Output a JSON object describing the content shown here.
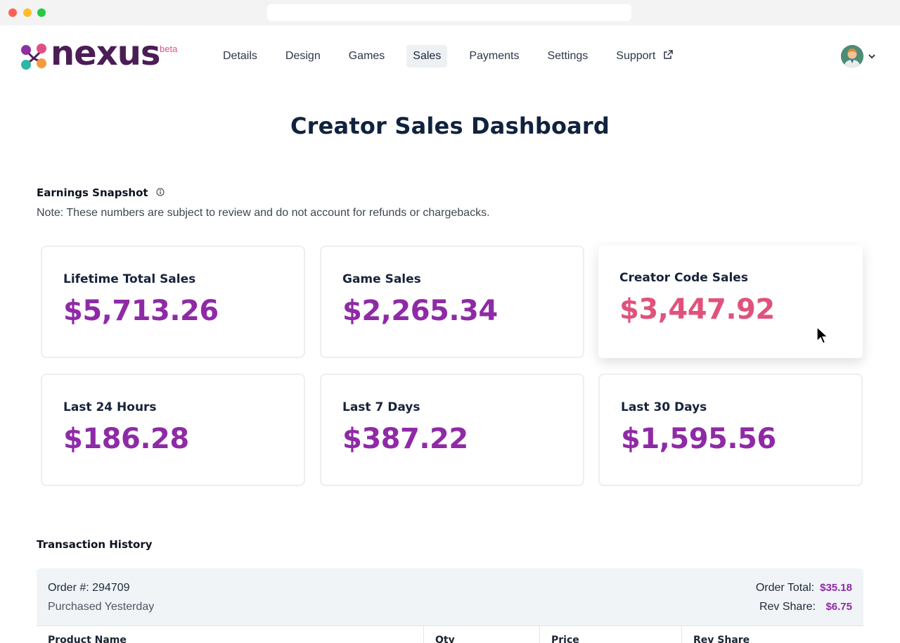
{
  "browser": {
    "url": ""
  },
  "header": {
    "logo_text": "nexus",
    "logo_badge": "beta",
    "nav": [
      {
        "label": "Details",
        "active": false
      },
      {
        "label": "Design",
        "active": false
      },
      {
        "label": "Games",
        "active": false
      },
      {
        "label": "Sales",
        "active": true
      },
      {
        "label": "Payments",
        "active": false
      },
      {
        "label": "Settings",
        "active": false
      },
      {
        "label": "Support",
        "active": false,
        "icon": "external-link-icon"
      }
    ],
    "user_menu": {
      "icon": "avatar",
      "chevron": "chevron-down-icon"
    }
  },
  "page": {
    "title": "Creator Sales Dashboard"
  },
  "earnings": {
    "title": "Earnings Snapshot",
    "info_icon": "info-icon",
    "note": "Note: These numbers are subject to review and do not account for refunds or chargebacks.",
    "cards": [
      {
        "label": "Lifetime Total Sales",
        "value": "$5,713.26"
      },
      {
        "label": "Game Sales",
        "value": "$2,265.34"
      },
      {
        "label": "Creator Code Sales",
        "value": "$3,447.92"
      },
      {
        "label": "Last 24 Hours",
        "value": "$186.28"
      },
      {
        "label": "Last 7 Days",
        "value": "$387.22"
      },
      {
        "label": "Last 30 Days",
        "value": "$1,595.56"
      }
    ]
  },
  "transactions": {
    "title": "Transaction History",
    "order": {
      "number": "Order #: 294709",
      "purchased": "Purchased Yesterday",
      "total_label": "Order Total:",
      "total_value": "$35.18",
      "rev_label": "Rev Share:",
      "rev_value": "$6.75"
    },
    "columns": [
      "Product Name",
      "Qty",
      "Price",
      "Rev Share"
    ]
  },
  "colors": {
    "accent": "#8f2aa6",
    "highlight": "#e0527c",
    "heading": "#10223e",
    "panel": "#f1f4f7"
  }
}
